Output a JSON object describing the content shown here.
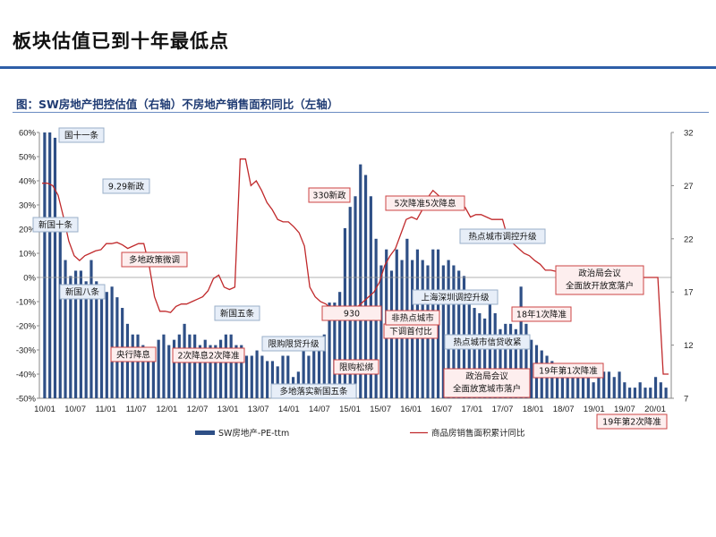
{
  "slide": {
    "title": "板块估值已到十年最低点",
    "caption": "图：SW房地产把控估值（右轴）不房地产销售面积同比（左轴）"
  },
  "colors": {
    "bar": "#2e4f86",
    "line": "#c0292b",
    "title_rule": "#2e5ea8",
    "annotation_blue_border": "#9aafc8",
    "annotation_red_border": "#cc4444"
  },
  "chart_data": {
    "type": "bar+line",
    "left_axis": {
      "min": -50,
      "max": 60,
      "step": 10,
      "unit": "%",
      "ticks": [
        "60%",
        "50%",
        "40%",
        "30%",
        "20%",
        "10%",
        "0%",
        "-10%",
        "-20%",
        "-30%",
        "-40%",
        "-50%"
      ]
    },
    "right_axis": {
      "min": 7,
      "max": 32,
      "ticks": [
        "32",
        "27",
        "22",
        "17",
        "12",
        "7"
      ]
    },
    "x_tick_labels": [
      "10/01",
      "10/07",
      "11/01",
      "11/07",
      "12/01",
      "12/07",
      "13/01",
      "13/07",
      "14/01",
      "14/07",
      "15/01",
      "15/07",
      "16/01",
      "16/07",
      "17/01",
      "17/07",
      "18/01",
      "18/07",
      "19/01",
      "19/07",
      "20/01"
    ],
    "bars": {
      "name": "SW房地产-PE-ttm",
      "axis": "right",
      "values": [
        32,
        32,
        31.5,
        24,
        20,
        18.5,
        19,
        19,
        18,
        20,
        18,
        17.5,
        17,
        17.5,
        16.5,
        15.5,
        14,
        13,
        13,
        12,
        11.5,
        11.5,
        12.5,
        13,
        12,
        12.5,
        13,
        14,
        13,
        13,
        12,
        12.5,
        12,
        12,
        12.5,
        13,
        13,
        12,
        12,
        11,
        11,
        11.5,
        11,
        10.5,
        10.5,
        10,
        11,
        11,
        9,
        9.5,
        11.5,
        11,
        12.5,
        12.5,
        13,
        16,
        16,
        17,
        23,
        25,
        26,
        29,
        28,
        26,
        22,
        19.5,
        21,
        19,
        21,
        20,
        22,
        20,
        21,
        20,
        19.5,
        21,
        21,
        19.5,
        20,
        19.5,
        19,
        18.5,
        16,
        15.5,
        15,
        14.5,
        16,
        15,
        13.5,
        14,
        14,
        13.5,
        17.5,
        14,
        12.5,
        12,
        11.5,
        11,
        10.5,
        10,
        9.5,
        9.5,
        10,
        9.5,
        9,
        9,
        8.5,
        9,
        9.5,
        9.5,
        9,
        9.5,
        8.5,
        8,
        8,
        8.5,
        8,
        8,
        9,
        8.5,
        8
      ]
    },
    "line": {
      "name": "商品房销售面积累计同比",
      "axis": "left",
      "x": [
        0,
        1,
        2,
        3,
        4,
        5,
        6,
        7,
        8,
        9,
        10,
        11,
        12,
        13,
        14,
        15,
        16,
        17,
        18,
        19,
        20,
        21,
        22,
        23,
        24,
        25,
        26,
        27,
        28,
        29,
        30,
        31,
        32,
        33,
        34,
        35,
        36,
        37,
        38,
        39,
        40,
        41,
        42,
        43,
        44,
        45,
        46,
        47,
        48,
        49,
        50,
        51,
        52,
        53,
        54,
        55,
        56,
        57,
        58,
        59,
        60,
        61,
        62,
        63,
        64,
        65,
        66,
        67,
        68,
        69,
        70,
        71,
        72,
        73,
        74,
        75,
        76,
        77,
        78,
        79,
        80,
        81,
        82,
        83,
        84,
        85,
        86,
        87,
        88,
        89,
        90,
        91,
        92,
        93,
        94,
        95,
        96,
        97,
        98,
        99,
        100,
        101,
        102,
        103,
        104,
        105,
        106,
        107,
        108,
        109,
        110,
        111,
        112,
        113,
        114,
        115,
        116,
        117
      ],
      "values": [
        39,
        39,
        38,
        34,
        25,
        15,
        9,
        7,
        9,
        10,
        11,
        11.5,
        14,
        14,
        14.5,
        13.5,
        12,
        13,
        14,
        14,
        5,
        -8,
        -14,
        -14,
        -14.5,
        -12,
        -11,
        -11,
        -10,
        -9,
        -8,
        -5.5,
        -0.5,
        1,
        -4,
        -5,
        -4,
        49,
        49,
        38,
        40,
        36,
        31,
        28,
        24,
        23,
        23,
        21,
        18.5,
        13,
        -4,
        -8,
        -10,
        -11,
        -13,
        -14.5,
        -15,
        -15,
        -14,
        -12,
        -10,
        -8,
        -6,
        -2,
        5,
        9,
        12,
        18,
        24,
        25,
        24,
        28,
        33,
        36,
        34,
        32,
        32,
        30,
        31,
        29,
        25,
        26,
        26,
        25,
        24,
        24,
        24,
        16,
        14,
        12,
        10,
        9,
        7,
        5.5,
        3,
        3,
        2.5,
        1,
        1,
        0,
        0,
        0,
        0,
        0,
        0,
        0,
        0,
        0,
        0,
        0,
        -1,
        -1,
        0,
        0,
        0,
        0,
        -40,
        -40
      ]
    },
    "legend": [
      {
        "label": "SW房地产-PE-ttm",
        "kind": "bar"
      },
      {
        "label": "商品房销售面积累计同比",
        "kind": "line"
      }
    ],
    "annotations": [
      {
        "id": "ann-guoshiyi",
        "text": "国十一条",
        "style": "blue"
      },
      {
        "id": "ann-929",
        "text": "9.29新政",
        "style": "blue"
      },
      {
        "id": "ann-xinguoshi",
        "text": "新国十条",
        "style": "blue"
      },
      {
        "id": "ann-xinguoba",
        "text": "新国八条",
        "style": "blue"
      },
      {
        "id": "ann-duodi",
        "text": "多地政策微调",
        "style": "red"
      },
      {
        "id": "ann-yanghang",
        "text": "央行降息",
        "style": "red"
      },
      {
        "id": "ann-2ci",
        "text": "2次降息2次降准",
        "style": "red"
      },
      {
        "id": "ann-xinguowu",
        "text": "新国五条",
        "style": "blue"
      },
      {
        "id": "ann-xiangou",
        "text": "限购限贷升级",
        "style": "blue"
      },
      {
        "id": "ann-duodiluoshi",
        "text": "多地落实新国五条",
        "style": "blue"
      },
      {
        "id": "ann-330",
        "text": "330新政",
        "style": "red"
      },
      {
        "id": "ann-930",
        "text": "930",
        "style": "red"
      },
      {
        "id": "ann-xiangousongbang",
        "text": "限购松绑",
        "style": "red"
      },
      {
        "id": "ann-5ci",
        "text": "5次降准5次降息",
        "style": "red"
      },
      {
        "id": "ann-xiatiao",
        "text": "下调首付比",
        "style": "red"
      },
      {
        "id": "ann-feire",
        "text": "非热点城市",
        "style": "red"
      },
      {
        "id": "ann-redian",
        "text": "热点城市调控升级",
        "style": "blue"
      },
      {
        "id": "ann-shanghai",
        "text": "上海深圳调控升级",
        "style": "blue"
      },
      {
        "id": "ann-xindai",
        "text": "热点城市信贷收紧",
        "style": "blue"
      },
      {
        "id": "ann-zhengzhiju18",
        "text": "政治局会议\n全面放宽城市落户",
        "style": "red"
      },
      {
        "id": "ann-18nian",
        "text": "18年1次降准",
        "style": "red"
      },
      {
        "id": "ann-19nian1",
        "text": "19年第1次降准",
        "style": "red"
      },
      {
        "id": "ann-zhengzhiju19",
        "text": "政治局会议\n全面放开放宽落户",
        "style": "red"
      },
      {
        "id": "ann-19nian2",
        "text": "19年第2次降准",
        "style": "red"
      }
    ]
  }
}
